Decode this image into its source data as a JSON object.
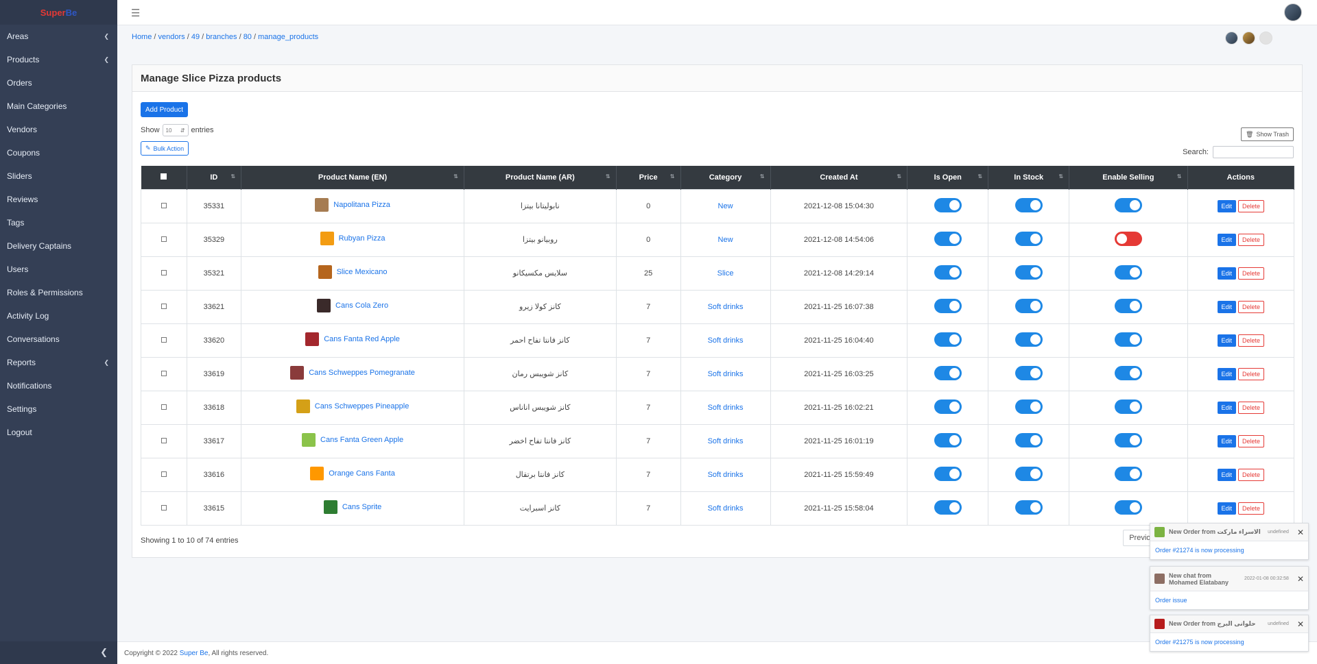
{
  "brand": {
    "part1": "Super",
    "part2": "Be"
  },
  "sidebar": {
    "items": [
      {
        "label": "Areas",
        "arrow": true
      },
      {
        "label": "Products",
        "arrow": true
      },
      {
        "label": "Orders",
        "arrow": false
      },
      {
        "label": "Main Categories",
        "arrow": false
      },
      {
        "label": "Vendors",
        "arrow": false
      },
      {
        "label": "Coupons",
        "arrow": false
      },
      {
        "label": "Sliders",
        "arrow": false
      },
      {
        "label": "Reviews",
        "arrow": false
      },
      {
        "label": "Tags",
        "arrow": false
      },
      {
        "label": "Delivery Captains",
        "arrow": false
      },
      {
        "label": "Users",
        "arrow": false
      },
      {
        "label": "Roles & Permissions",
        "arrow": false
      },
      {
        "label": "Activity Log",
        "arrow": false
      },
      {
        "label": "Conversations",
        "arrow": false
      },
      {
        "label": "Reports",
        "arrow": true
      },
      {
        "label": "Notifications",
        "arrow": false
      },
      {
        "label": "Settings",
        "arrow": false
      },
      {
        "label": "Logout",
        "arrow": false
      }
    ]
  },
  "breadcrumb": [
    "Home",
    "vendors",
    "49",
    "branches",
    "80",
    "manage_products"
  ],
  "page": {
    "title": "Manage Slice Pizza products",
    "add_button": "Add Product",
    "show_label": "Show",
    "entries_value": "10",
    "entries_label": "entries",
    "bulk_action": "Bulk Action",
    "show_trash": "Show Trash",
    "search_label": "Search:",
    "info": "Showing 1 to 10 of 74 entries",
    "previous": "Previous"
  },
  "table": {
    "columns": [
      "ID",
      "Product Name (EN)",
      "Product Name (AR)",
      "Price",
      "Category",
      "Created At",
      "Is Open",
      "In Stock",
      "Enable Selling",
      "Actions"
    ],
    "edit_label": "Edit",
    "delete_label": "Delete",
    "rows": [
      {
        "id": "35331",
        "name_en": "Napolitana Pizza",
        "name_ar": "نابوليتانا بيتزا",
        "price": "0",
        "category": "New",
        "created_at": "2021-12-08 15:04:30",
        "is_open": true,
        "in_stock": true,
        "enable_selling": true,
        "thumb_color": "#a67c52"
      },
      {
        "id": "35329",
        "name_en": "Rubyan Pizza",
        "name_ar": "روبيانو بيتزا",
        "price": "0",
        "category": "New",
        "created_at": "2021-12-08 14:54:06",
        "is_open": true,
        "in_stock": true,
        "enable_selling": false,
        "thumb_color": "#f39c12"
      },
      {
        "id": "35321",
        "name_en": "Slice Mexicano",
        "name_ar": "سلايس مكسيكانو",
        "price": "25",
        "category": "Slice",
        "created_at": "2021-12-08 14:29:14",
        "is_open": true,
        "in_stock": true,
        "enable_selling": true,
        "thumb_color": "#b5651d"
      },
      {
        "id": "33621",
        "name_en": "Cans Cola Zero",
        "name_ar": "كانز كولا زيرو",
        "price": "7",
        "category": "Soft drinks",
        "created_at": "2021-11-25 16:07:38",
        "is_open": true,
        "in_stock": true,
        "enable_selling": true,
        "thumb_color": "#3a2a2a"
      },
      {
        "id": "33620",
        "name_en": "Cans Fanta Red Apple",
        "name_ar": "كانز فانتا تفاح احمر",
        "price": "7",
        "category": "Soft drinks",
        "created_at": "2021-11-25 16:04:40",
        "is_open": true,
        "in_stock": true,
        "enable_selling": true,
        "thumb_color": "#a3272d"
      },
      {
        "id": "33619",
        "name_en": "Cans Schweppes Pomegranate",
        "name_ar": "كانز شويبس رمان",
        "price": "7",
        "category": "Soft drinks",
        "created_at": "2021-11-25 16:03:25",
        "is_open": true,
        "in_stock": true,
        "enable_selling": true,
        "thumb_color": "#8a3b3b"
      },
      {
        "id": "33618",
        "name_en": "Cans Schweppes Pineapple",
        "name_ar": "كانز شويبس اناناس",
        "price": "7",
        "category": "Soft drinks",
        "created_at": "2021-11-25 16:02:21",
        "is_open": true,
        "in_stock": true,
        "enable_selling": true,
        "thumb_color": "#d4a017"
      },
      {
        "id": "33617",
        "name_en": "Cans Fanta Green Apple",
        "name_ar": "كانز فانتا تفاح اخضر",
        "price": "7",
        "category": "Soft drinks",
        "created_at": "2021-11-25 16:01:19",
        "is_open": true,
        "in_stock": true,
        "enable_selling": true,
        "thumb_color": "#8bc34a"
      },
      {
        "id": "33616",
        "name_en": "Orange Cans Fanta",
        "name_ar": "كانز فانتا برتقال",
        "price": "7",
        "category": "Soft drinks",
        "created_at": "2021-11-25 15:59:49",
        "is_open": true,
        "in_stock": true,
        "enable_selling": true,
        "thumb_color": "#ff9800"
      },
      {
        "id": "33615",
        "name_en": "Cans Sprite",
        "name_ar": "كانز اسبرايت",
        "price": "7",
        "category": "Soft drinks",
        "created_at": "2021-11-25 15:58:04",
        "is_open": true,
        "in_stock": true,
        "enable_selling": true,
        "thumb_color": "#2e7d32"
      }
    ]
  },
  "footer": {
    "copyright": "Copyright © 2022",
    "brand_link": "Super Be",
    "rights": ", All rights reserved."
  },
  "notifications": [
    {
      "title": "New Order from الاسراء ماركت",
      "time": "undefined",
      "body": "Order #21274 is now processing",
      "icon_color": "#7cb342"
    },
    {
      "title": "New chat from Mohamed Elatabany",
      "time": "2022-01-08 00:32:58",
      "body": "Order issue",
      "icon_color": "#8d6e63"
    },
    {
      "title": "New Order from حلوانى البرج",
      "time": "undefined",
      "body": "Order #21275 is now processing",
      "icon_color": "#b71c1c"
    }
  ],
  "colors": {
    "sidebar": "#343f55",
    "primary": "#1a73e8",
    "danger": "#e53935",
    "table_header": "#343a40"
  }
}
